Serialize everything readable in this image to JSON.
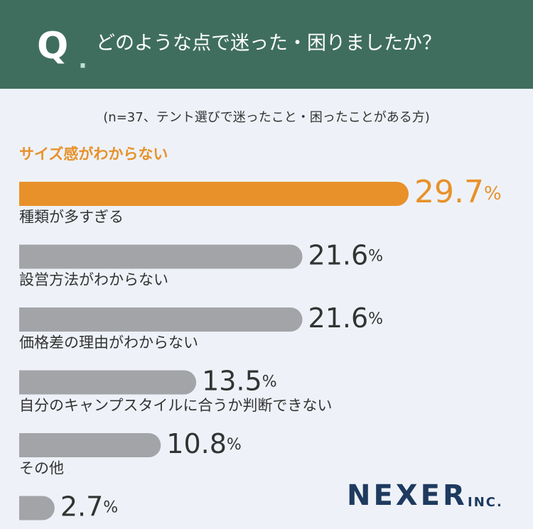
{
  "header": {
    "q_letter": "Q",
    "q_dot": ".",
    "title": "どのような点で迷った・困りましたか？"
  },
  "chart_data": {
    "type": "bar",
    "orientation": "horizontal",
    "subtitle": "(n=37、テント選びで迷ったこと・困ったことがある方)",
    "categories": [
      "サイズ感がわからない",
      "種類が多すぎる",
      "設営方法がわからない",
      "価格差の理由がわからない",
      "自分のキャンプスタイルに合うか判断できない",
      "その他"
    ],
    "values": [
      29.7,
      21.6,
      21.6,
      13.5,
      10.8,
      2.7
    ],
    "value_unit": "%",
    "colors": [
      "#e8912a",
      "#a3a4a8",
      "#a3a4a8",
      "#a3a4a8",
      "#a3a4a8",
      "#a3a4a8"
    ]
  },
  "logo": {
    "name": "NEXER",
    "suffix": "INC."
  }
}
